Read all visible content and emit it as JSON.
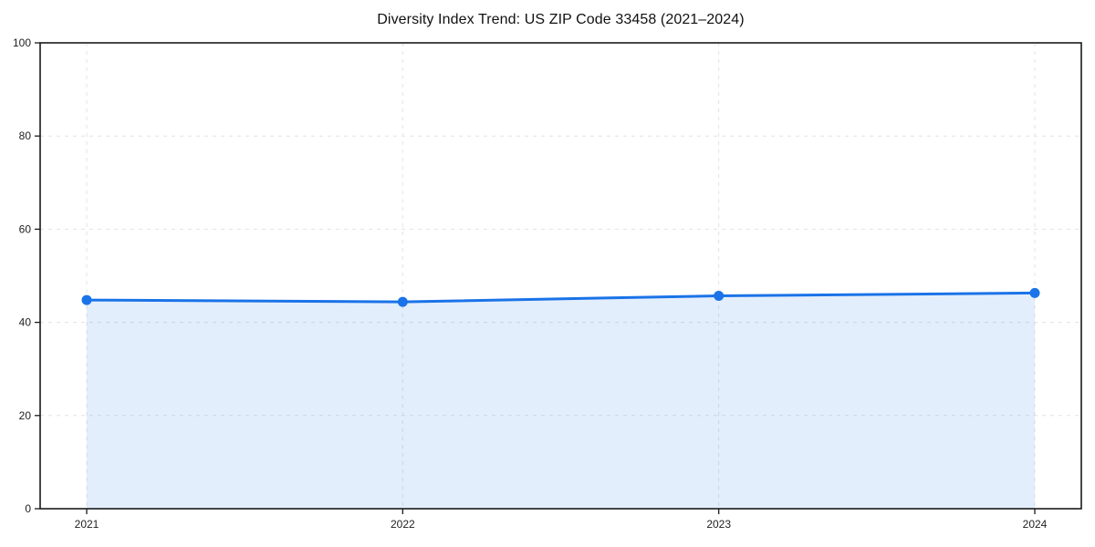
{
  "chart_data": {
    "type": "line",
    "title": "Diversity Index Trend: US ZIP Code 33458 (2021–2024)",
    "categories": [
      "2021",
      "2022",
      "2023",
      "2024"
    ],
    "series": [
      {
        "name": "Diversity Index",
        "values": [
          44.8,
          44.4,
          45.7,
          46.3
        ]
      }
    ],
    "xlabel": "",
    "ylabel": "",
    "ylim": [
      0,
      100
    ],
    "yticks": [
      0,
      20,
      40,
      60,
      80,
      100
    ],
    "grid": "dashed",
    "legend_position": "none",
    "area_fill": true,
    "marker": "circle",
    "line_color": "#1a73e8",
    "fill_opacity": 0.12,
    "grid_color": "#e3e3e3",
    "axis_color": "#1a1a1a",
    "tick_label_color": "#1f1f1f",
    "background_color": "#ffffff"
  }
}
